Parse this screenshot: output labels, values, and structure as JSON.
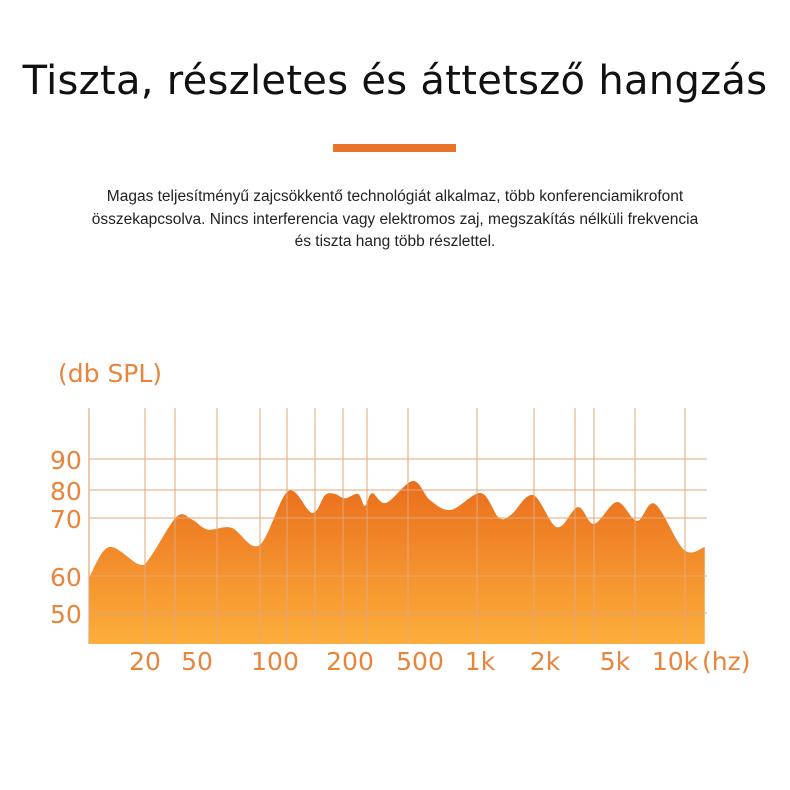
{
  "header": {
    "title": "Tiszta, részletes és áttetsző hangzás",
    "description_lines": [
      "Magas teljesítményű zajcsökkentő technológiát alkalmaz, több konferenciamikrofont",
      "összekapcsolva. Nincs interferencia vagy elektromos zaj, megszakítás nélküli frekvencia",
      "és tiszta hang több részlettel."
    ]
  },
  "colors": {
    "accent": "#e8742a",
    "label": "#e8843c",
    "grid": "#e3a77a",
    "fill_top": "#ea6e1c",
    "fill_bottom": "#fcae3c"
  },
  "chart_data": {
    "type": "area",
    "ylabel": "(db SPL)",
    "xlabel": "(hz)",
    "x_scale": "log (irregular spacing)",
    "y_scale": "irregular spacing",
    "grid": true,
    "legend": "none",
    "x_ticks": [
      "20",
      "50",
      "100",
      "200",
      "500",
      "1k",
      "2k",
      "5k",
      "10k"
    ],
    "x_tick_values": [
      20,
      50,
      100,
      200,
      500,
      1000,
      2000,
      5000,
      10000
    ],
    "y_ticks": [
      "90",
      "80",
      "70",
      "60",
      "50"
    ],
    "y_tick_values": [
      90,
      80,
      70,
      60,
      50
    ],
    "series": [
      {
        "x": [
          7.5,
          10.6,
          18,
          22,
          35,
          46,
          55,
          68,
          87,
          113,
          141,
          159,
          174,
          191,
          222,
          243,
          267,
          321,
          456,
          561,
          715,
          1010,
          1220,
          1390,
          1760,
          2340,
          3080,
          3800,
          5120,
          6450,
          7940,
          11100,
          14100
        ],
        "y": [
          59.7,
          65,
          62,
          63.3,
          70.5,
          69.7,
          68,
          68.3,
          65.3,
          79.6,
          71.8,
          78.2,
          78.6,
          77,
          78.6,
          74.3,
          78.9,
          75.4,
          82.9,
          76.4,
          72.9,
          78.9,
          70.2,
          71.1,
          78.2,
          68.4,
          73.9,
          69,
          75.7,
          69.5,
          75,
          64.5,
          65
        ]
      }
    ]
  }
}
